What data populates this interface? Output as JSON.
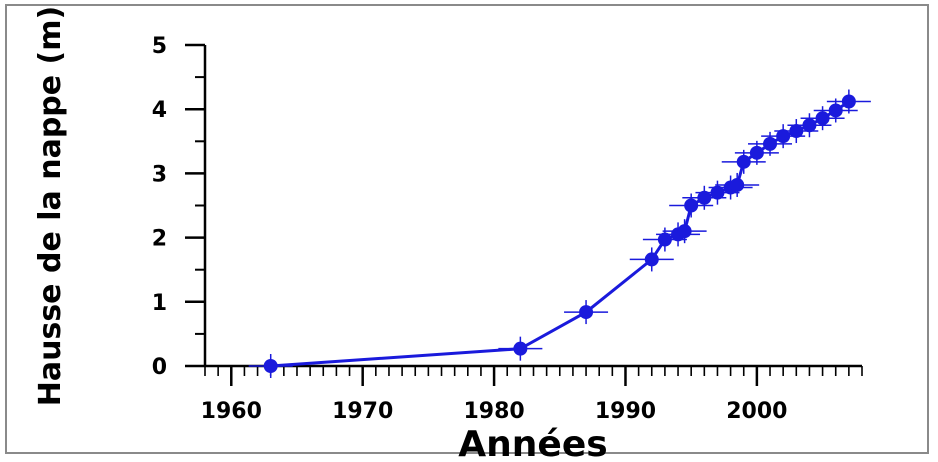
{
  "chart_data": {
    "type": "line",
    "title": "",
    "xlabel": "Années",
    "ylabel": "Hausse de la nappe (m)",
    "xlim": [
      1958,
      2008
    ],
    "ylim": [
      0,
      5
    ],
    "xticks": [
      1960,
      1970,
      1980,
      1990,
      2000
    ],
    "yticks": [
      0,
      1,
      2,
      3,
      4,
      5
    ],
    "grid": false,
    "colors": {
      "series": "#1a1adc",
      "axis": "#000000"
    },
    "series": [
      {
        "x": [
          1963,
          1982,
          1987,
          1992,
          1993,
          1994,
          1994.5,
          1995,
          1996,
          1997,
          1998,
          1998.5,
          1999,
          2000,
          2001,
          2002,
          2003,
          2004,
          2005,
          2006,
          2007
        ],
        "y": [
          0.0,
          0.27,
          0.84,
          1.66,
          1.97,
          2.05,
          2.1,
          2.5,
          2.62,
          2.7,
          2.78,
          2.82,
          3.18,
          3.32,
          3.46,
          3.58,
          3.66,
          3.75,
          3.86,
          3.98,
          4.12
        ]
      }
    ]
  }
}
